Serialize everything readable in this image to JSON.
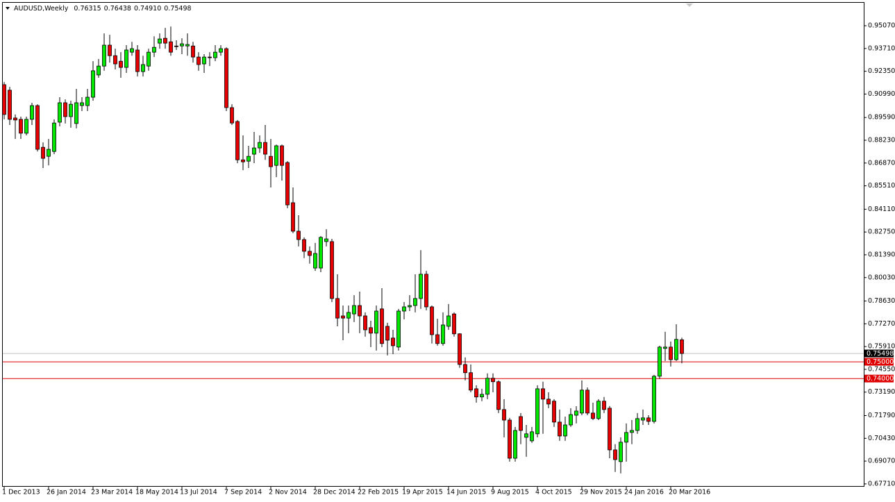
{
  "chart_data": {
    "type": "candlestick",
    "title": "AUDUSD,Weekly",
    "header_values": [
      0.76315,
      0.76438,
      {
        "value": 0.7491,
        "label": "0.74910"
      },
      0.75498
    ],
    "categories": [
      "1 Dec 2013",
      null,
      null,
      null,
      null,
      null,
      null,
      null,
      "26 Jan 2014",
      null,
      null,
      null,
      null,
      null,
      null,
      null,
      "23 Mar 2014",
      null,
      null,
      null,
      null,
      null,
      null,
      null,
      "18 May 2014",
      null,
      null,
      null,
      null,
      null,
      null,
      null,
      "13 Jul 2014",
      null,
      null,
      null,
      null,
      null,
      null,
      null,
      "7 Sep 2014",
      null,
      null,
      null,
      null,
      null,
      null,
      null,
      "2 Nov 2014",
      null,
      null,
      null,
      null,
      null,
      null,
      null,
      "28 Dec 2014",
      null,
      null,
      null,
      null,
      null,
      null,
      null,
      "22 Feb 2015",
      null,
      null,
      null,
      null,
      null,
      null,
      null,
      "19 Apr 2015",
      null,
      null,
      null,
      null,
      null,
      null,
      null,
      "14 Jun 2015",
      null,
      null,
      null,
      null,
      null,
      null,
      null,
      "9 Aug 2015",
      null,
      null,
      null,
      null,
      null,
      null,
      null,
      "4 Oct 2015",
      null,
      null,
      null,
      null,
      null,
      null,
      null,
      "29 Nov 2015",
      null,
      null,
      null,
      null,
      null,
      null,
      null,
      "24 Jan 2016",
      null,
      null,
      null,
      null,
      null,
      null,
      null,
      "20 Mar 2016",
      null,
      null
    ],
    "open": [
      0.9155,
      0.9122,
      0.8956,
      0.8948,
      0.8865,
      0.8948,
      0.903,
      0.8781,
      0.8727,
      0.8756,
      0.8931,
      0.9047,
      0.8964,
      0.8923,
      0.903,
      0.903,
      0.908,
      0.9213,
      0.9266,
      0.9391,
      0.9328,
      0.9295,
      0.9258,
      0.9349,
      0.9362,
      0.9233,
      0.9266,
      0.9349,
      0.9403,
      0.9432,
      0.9411,
      0.9386,
      0.9386,
      0.9386,
      0.9386,
      0.932,
      0.9279,
      0.932,
      0.9316,
      0.9349,
      0.937,
      0.9018,
      0.8935,
      0.8706,
      0.8698,
      0.874,
      0.8777,
      0.881,
      0.8727,
      0.8673,
      0.879,
      0.869,
      0.845,
      0.828,
      0.823,
      0.816,
      0.806,
      0.806,
      0.8218,
      0.8218,
      0.7878,
      0.7774,
      0.7761,
      0.7786,
      0.7836,
      0.7774,
      0.7704,
      0.7671,
      0.7816,
      0.7712,
      0.7642,
      0.7588,
      0.7803,
      0.7828,
      0.7836,
      0.7878,
      0.8023,
      0.7828,
      0.7662,
      0.7609,
      0.7712,
      0.7786,
      0.7667,
      0.7484,
      0.7435,
      0.7339,
      0.729,
      0.7306,
      0.7402,
      0.7381,
      0.7215,
      0.7152,
      0.6924,
      0.7173,
      0.7049,
      0.7028,
      0.707,
      0.7339,
      0.7277,
      0.7265,
      0.714,
      0.7057,
      0.7123,
      0.7181,
      0.7194,
      0.7331,
      0.7194,
      0.7161,
      0.7265,
      0.7223,
      0.6974,
      0.6904,
      0.702,
      0.7078,
      0.709,
      0.7152,
      0.7165,
      0.7144,
      0.7414,
      0.758,
      0.7588,
      0.7513,
      0.76315
    ],
    "high": [
      0.9171,
      0.9142,
      0.8977,
      0.8964,
      0.8964,
      0.9047,
      0.9038,
      0.881,
      0.8831,
      0.8948,
      0.908,
      0.9067,
      0.9059,
      0.913,
      0.908,
      0.913,
      0.9295,
      0.9308,
      0.9461,
      0.9453,
      0.937,
      0.9349,
      0.9391,
      0.9411,
      0.9391,
      0.9328,
      0.937,
      0.9444,
      0.9461,
      0.9494,
      0.9502,
      0.942,
      0.9432,
      0.9461,
      0.9411,
      0.9349,
      0.9337,
      0.9349,
      0.9391,
      0.9391,
      0.9378,
      0.9038,
      0.8944,
      0.8852,
      0.879,
      0.8873,
      0.8852,
      0.8914,
      0.8831,
      0.8797,
      0.8797,
      0.8698,
      0.8541,
      0.8375,
      0.8243,
      0.8189,
      0.821,
      0.8251,
      0.8292,
      0.8234,
      0.8023,
      0.7836,
      0.7836,
      0.7898,
      0.7919,
      0.7795,
      0.7745,
      0.7836,
      0.794,
      0.7733,
      0.7691,
      0.7816,
      0.7857,
      0.7898,
      0.8023,
      0.8167,
      0.8043,
      0.7836,
      0.7757,
      0.7795,
      0.7845,
      0.7795,
      0.7671,
      0.7526,
      0.7484,
      0.736,
      0.7339,
      0.7431,
      0.7431,
      0.7389,
      0.7277,
      0.7165,
      0.7111,
      0.7194,
      0.7123,
      0.7111,
      0.736,
      0.7381,
      0.7318,
      0.7277,
      0.7215,
      0.7173,
      0.7223,
      0.7235,
      0.7389,
      0.7347,
      0.7256,
      0.7277,
      0.729,
      0.7236,
      0.7008,
      0.7049,
      0.7132,
      0.7152,
      0.7194,
      0.7215,
      0.7181,
      0.7422,
      0.7596,
      0.7679,
      0.7621,
      0.7724,
      0.76438
    ],
    "low": [
      0.8948,
      0.8914,
      0.8831,
      0.8831,
      0.8852,
      0.8914,
      0.8756,
      0.8657,
      0.8673,
      0.874,
      0.8906,
      0.8923,
      0.8898,
      0.8894,
      0.8997,
      0.8997,
      0.9059,
      0.9196,
      0.9238,
      0.9287,
      0.9246,
      0.9196,
      0.9225,
      0.9328,
      0.9204,
      0.9204,
      0.9238,
      0.932,
      0.937,
      0.937,
      0.9328,
      0.9362,
      0.9337,
      0.9328,
      0.9287,
      0.9238,
      0.9225,
      0.9266,
      0.9295,
      0.9328,
      0.8997,
      0.8914,
      0.8686,
      0.8644,
      0.8657,
      0.8686,
      0.8748,
      0.8706,
      0.8541,
      0.8603,
      0.8582,
      0.8417,
      0.8268,
      0.8189,
      0.8119,
      0.8086,
      0.8043,
      0.8035,
      0.8189,
      0.7857,
      0.7712,
      0.7629,
      0.7671,
      0.7737,
      0.7671,
      0.765,
      0.7588,
      0.7567,
      0.7588,
      0.7538,
      0.7546,
      0.7567,
      0.7754,
      0.7803,
      0.7795,
      0.7816,
      0.7807,
      0.7609,
      0.7596,
      0.7596,
      0.7691,
      0.765,
      0.7464,
      0.7389,
      0.7318,
      0.7256,
      0.7265,
      0.7277,
      0.7318,
      0.7194,
      0.7049,
      0.6904,
      0.6904,
      0.7008,
      0.6933,
      0.7016,
      0.7049,
      0.707,
      0.7223,
      0.7111,
      0.7028,
      0.7028,
      0.7111,
      0.7132,
      0.7181,
      0.7181,
      0.7152,
      0.7152,
      0.7194,
      0.6924,
      0.6842,
      0.6834,
      0.6904,
      0.7008,
      0.707,
      0.7123,
      0.7123,
      0.7132,
      0.7397,
      0.7505,
      0.7472,
      0.7505,
      0.7491
    ],
    "close": [
      0.8977,
      0.8948,
      0.8944,
      0.8865,
      0.8948,
      0.903,
      0.8769,
      0.8715,
      0.8769,
      0.8926,
      0.9047,
      0.8964,
      0.9038,
      0.9047,
      0.9047,
      0.908,
      0.9238,
      0.9266,
      0.9391,
      0.9328,
      0.9279,
      0.9258,
      0.9362,
      0.937,
      0.9233,
      0.9275,
      0.9349,
      0.9378,
      0.9428,
      0.9403,
      0.9349,
      0.9382,
      0.9399,
      0.9395,
      0.932,
      0.9275,
      0.932,
      0.9316,
      0.9349,
      0.937,
      0.9018,
      0.8926,
      0.8706,
      0.8694,
      0.8727,
      0.8777,
      0.881,
      0.874,
      0.8665,
      0.879,
      0.8673,
      0.8437,
      0.828,
      0.823,
      0.816,
      0.8135,
      0.8147,
      0.8243,
      0.8234,
      0.7878,
      0.7761,
      0.7761,
      0.7795,
      0.7836,
      0.7774,
      0.7691,
      0.7671,
      0.7803,
      0.7609,
      0.7629,
      0.7596,
      0.7803,
      0.7828,
      0.7836,
      0.7878,
      0.8023,
      0.7828,
      0.7662,
      0.7609,
      0.772,
      0.7774,
      0.7667,
      0.7484,
      0.7435,
      0.7331,
      0.729,
      0.7306,
      0.7402,
      0.7381,
      0.7215,
      0.7152,
      0.6924,
      0.709,
      0.709,
      0.707,
      0.7082,
      0.7339,
      0.7277,
      0.7248,
      0.714,
      0.7057,
      0.7123,
      0.7185,
      0.7206,
      0.7331,
      0.7194,
      0.7161,
      0.7265,
      0.7215,
      0.6974,
      0.6916,
      0.702,
      0.7078,
      0.709,
      0.7161,
      0.7165,
      0.7144,
      0.7414,
      0.7588,
      0.7588,
      0.7513,
      0.7634,
      0.75498
    ],
    "up_color": "#00e600",
    "down_color": "#e60000",
    "ylim": [
      0.6754,
      0.9644
    ],
    "yticks": [
      {
        "value": 0.9507,
        "label": "0.95070"
      },
      {
        "value": 0.9371,
        "label": "0.93710"
      },
      {
        "value": 0.9235,
        "label": "0.92350"
      },
      {
        "value": 0.9099,
        "label": "0.90990"
      },
      {
        "value": 0.8959,
        "label": "0.89590"
      },
      {
        "value": 0.8823,
        "label": "0.88230"
      },
      {
        "value": 0.8687,
        "label": "0.86870"
      },
      {
        "value": 0.8551,
        "label": "0.85510"
      },
      {
        "value": 0.8411,
        "label": "0.84110"
      },
      {
        "value": 0.8275,
        "label": "0.82750"
      },
      {
        "value": 0.8139,
        "label": "0.81390"
      },
      {
        "value": 0.8003,
        "label": "0.80030"
      },
      {
        "value": 0.7863,
        "label": "0.78630"
      },
      {
        "value": 0.7727,
        "label": "0.77270"
      },
      {
        "value": 0.7591,
        "label": "0.75910"
      },
      {
        "value": 0.7455,
        "label": "0.74550"
      },
      {
        "value": 0.7319,
        "label": "0.73190"
      },
      {
        "value": 0.7179,
        "label": "0.71790"
      },
      {
        "value": 0.7043,
        "label": "0.70430"
      },
      {
        "value": 0.6907,
        "label": "0.69070"
      },
      {
        "value": 0.6771,
        "label": "0.67710"
      }
    ],
    "current_price": {
      "value": 0.75498,
      "label": "0.75498",
      "color": "#c0c0c0"
    },
    "levels": [
      {
        "value": 0.75,
        "label": "0.75000",
        "color": "#e00000"
      },
      {
        "value": 0.74,
        "label": "0.74000",
        "color": "#e00000"
      }
    ]
  }
}
